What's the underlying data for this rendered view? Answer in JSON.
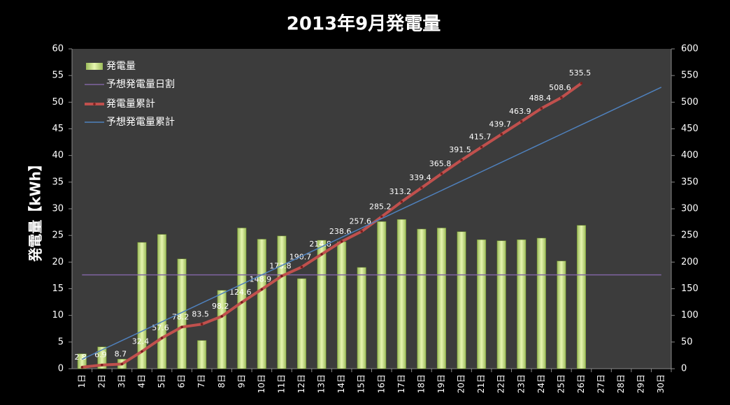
{
  "chart_data": {
    "type": "combo",
    "title": "2013年9月発電量",
    "y_label": "発電量【kWh】",
    "categories": [
      "1日",
      "2日",
      "3日",
      "4日",
      "5日",
      "6日",
      "7日",
      "8日",
      "9日",
      "10日",
      "11日",
      "12日",
      "13日",
      "14日",
      "15日",
      "16日",
      "17日",
      "18日",
      "19日",
      "20日",
      "21日",
      "22日",
      "23日",
      "24日",
      "25日",
      "26日",
      "27日",
      "28日",
      "29日",
      "30日"
    ],
    "ylim": [
      0,
      60
    ],
    "yticks": [
      0,
      5,
      10,
      15,
      20,
      25,
      30,
      35,
      40,
      45,
      50,
      55,
      60
    ],
    "y2lim": [
      0,
      600
    ],
    "y2ticks": [
      0,
      50,
      100,
      150,
      200,
      250,
      300,
      350,
      400,
      450,
      500,
      550,
      600
    ],
    "grid": false,
    "legend": "top-left",
    "series": [
      {
        "name": "発電量",
        "type": "bar",
        "color": "#9bbb59",
        "values": [
          2.8,
          4.1,
          1.8,
          23.7,
          25.2,
          20.6,
          5.3,
          14.7,
          26.4,
          24.3,
          24.9,
          16.9,
          24.1,
          23.8,
          19.0,
          27.6,
          28.0,
          26.2,
          26.4,
          25.7,
          24.2,
          24.0,
          24.2,
          24.5,
          20.2,
          26.9,
          null,
          null,
          null,
          null
        ]
      },
      {
        "name": "予想発電量日割",
        "type": "line",
        "color": "#8064a2",
        "values": [
          17.6,
          17.6,
          17.6,
          17.6,
          17.6,
          17.6,
          17.6,
          17.6,
          17.6,
          17.6,
          17.6,
          17.6,
          17.6,
          17.6,
          17.6,
          17.6,
          17.6,
          17.6,
          17.6,
          17.6,
          17.6,
          17.6,
          17.6,
          17.6,
          17.6,
          17.6,
          17.6,
          17.6,
          17.6,
          17.6
        ]
      },
      {
        "name": "発電量累計",
        "type": "line",
        "axis": "y2",
        "color": "#c0504d",
        "markers": true,
        "data_labels": true,
        "values": [
          2.8,
          6.9,
          8.7,
          32.4,
          57.6,
          78.2,
          83.5,
          98.2,
          124.6,
          148.9,
          173.8,
          190.7,
          214.8,
          238.6,
          257.6,
          285.2,
          313.2,
          339.4,
          365.8,
          391.5,
          415.7,
          439.7,
          463.9,
          488.4,
          508.6,
          535.5,
          null,
          null,
          null,
          null
        ]
      },
      {
        "name": "予想発電量累計",
        "type": "line",
        "axis": "y2",
        "color": "#4f81bd",
        "values": [
          17.6,
          35.2,
          52.8,
          70.4,
          88,
          105.6,
          123.2,
          140.8,
          158.4,
          176,
          193.6,
          211.2,
          228.8,
          246.4,
          264,
          281.6,
          299.2,
          316.8,
          334.4,
          352,
          369.6,
          387.2,
          404.8,
          422.4,
          440,
          457.6,
          475.2,
          492.8,
          510.4,
          528
        ]
      }
    ]
  }
}
